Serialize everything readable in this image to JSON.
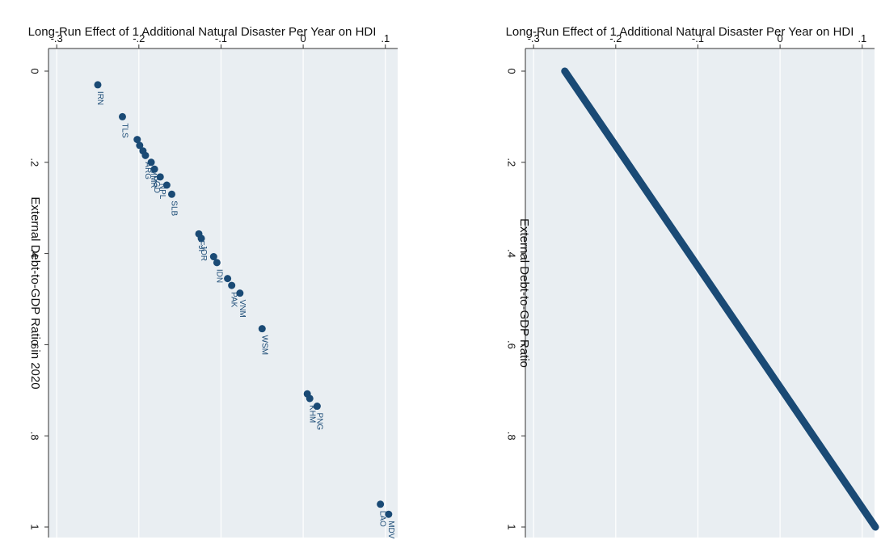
{
  "chart_data": [
    {
      "type": "scatter",
      "title": "",
      "xlabel": "Long-Run Effect of 1 Additional Natural Disaster Per Year on HDI",
      "ylabel": "External Debt-to-GDP Ratio in 2020",
      "xlim": [
        -0.31,
        0.115
      ],
      "ylim": [
        0,
        1
      ],
      "x_ticks": [
        "-.3",
        "-.2",
        "-.1",
        "0",
        ".1"
      ],
      "x_tick_values": [
        -0.3,
        -0.2,
        -0.1,
        0,
        0.1
      ],
      "y_ticks": [
        "0",
        ".2",
        ".4",
        ".6",
        ".8",
        "1"
      ],
      "y_tick_values": [
        0,
        0.2,
        0.4,
        0.6,
        0.8,
        1
      ],
      "orientation": "rotated-90-clockwise",
      "grid": true,
      "marker_color": "#1a4a75",
      "background": "#e9eef2",
      "points": [
        {
          "label": "IRN",
          "x": -0.25,
          "y": 0.03
        },
        {
          "label": "TLS",
          "x": -0.22,
          "y": 0.1
        },
        {
          "label": "",
          "x": -0.202,
          "y": 0.15
        },
        {
          "label": "",
          "x": -0.199,
          "y": 0.163
        },
        {
          "label": "",
          "x": -0.195,
          "y": 0.175
        },
        {
          "label": "ARG",
          "x": -0.192,
          "y": 0.185
        },
        {
          "label": "MMR",
          "x": -0.185,
          "y": 0.2
        },
        {
          "label": "BGD",
          "x": -0.181,
          "y": 0.215
        },
        {
          "label": "NPL",
          "x": -0.174,
          "y": 0.232
        },
        {
          "label": "",
          "x": -0.166,
          "y": 0.25
        },
        {
          "label": "SLB",
          "x": -0.16,
          "y": 0.27
        },
        {
          "label": "FJI",
          "x": -0.127,
          "y": 0.357
        },
        {
          "label": "JOR",
          "x": -0.124,
          "y": 0.367
        },
        {
          "label": "",
          "x": -0.109,
          "y": 0.407
        },
        {
          "label": "IDN",
          "x": -0.105,
          "y": 0.42
        },
        {
          "label": "",
          "x": -0.092,
          "y": 0.455
        },
        {
          "label": "PAK",
          "x": -0.087,
          "y": 0.47
        },
        {
          "label": "VNM",
          "x": -0.077,
          "y": 0.487
        },
        {
          "label": "WSM",
          "x": -0.05,
          "y": 0.565
        },
        {
          "label": "",
          "x": 0.005,
          "y": 0.708
        },
        {
          "label": "KHM",
          "x": 0.008,
          "y": 0.718
        },
        {
          "label": "PNG",
          "x": 0.017,
          "y": 0.735
        },
        {
          "label": "LAO",
          "x": 0.094,
          "y": 0.95
        },
        {
          "label": "MDV",
          "x": 0.104,
          "y": 0.972
        }
      ]
    },
    {
      "type": "line",
      "title": "",
      "xlabel": "Long-Run Effect of 1 Additional Natural Disaster Per Year on HDI",
      "ylabel": "External Debt-to-GDP Ratio",
      "xlim": [
        -0.31,
        0.115
      ],
      "ylim": [
        0,
        1
      ],
      "x_ticks": [
        "-.3",
        "-.2",
        "-.1",
        "0",
        ".1"
      ],
      "x_tick_values": [
        -0.3,
        -0.2,
        -0.1,
        0,
        0.1
      ],
      "y_ticks": [
        "0",
        ".2",
        ".4",
        ".6",
        ".8",
        "1"
      ],
      "y_tick_values": [
        0,
        0.2,
        0.4,
        0.6,
        0.8,
        1
      ],
      "orientation": "rotated-90-clockwise",
      "grid": true,
      "marker_color": "#1a4a75",
      "background": "#e9eef2",
      "line": {
        "x_start": -0.262,
        "y_start": 0,
        "x_end": 0.116,
        "y_end": 1
      }
    }
  ]
}
